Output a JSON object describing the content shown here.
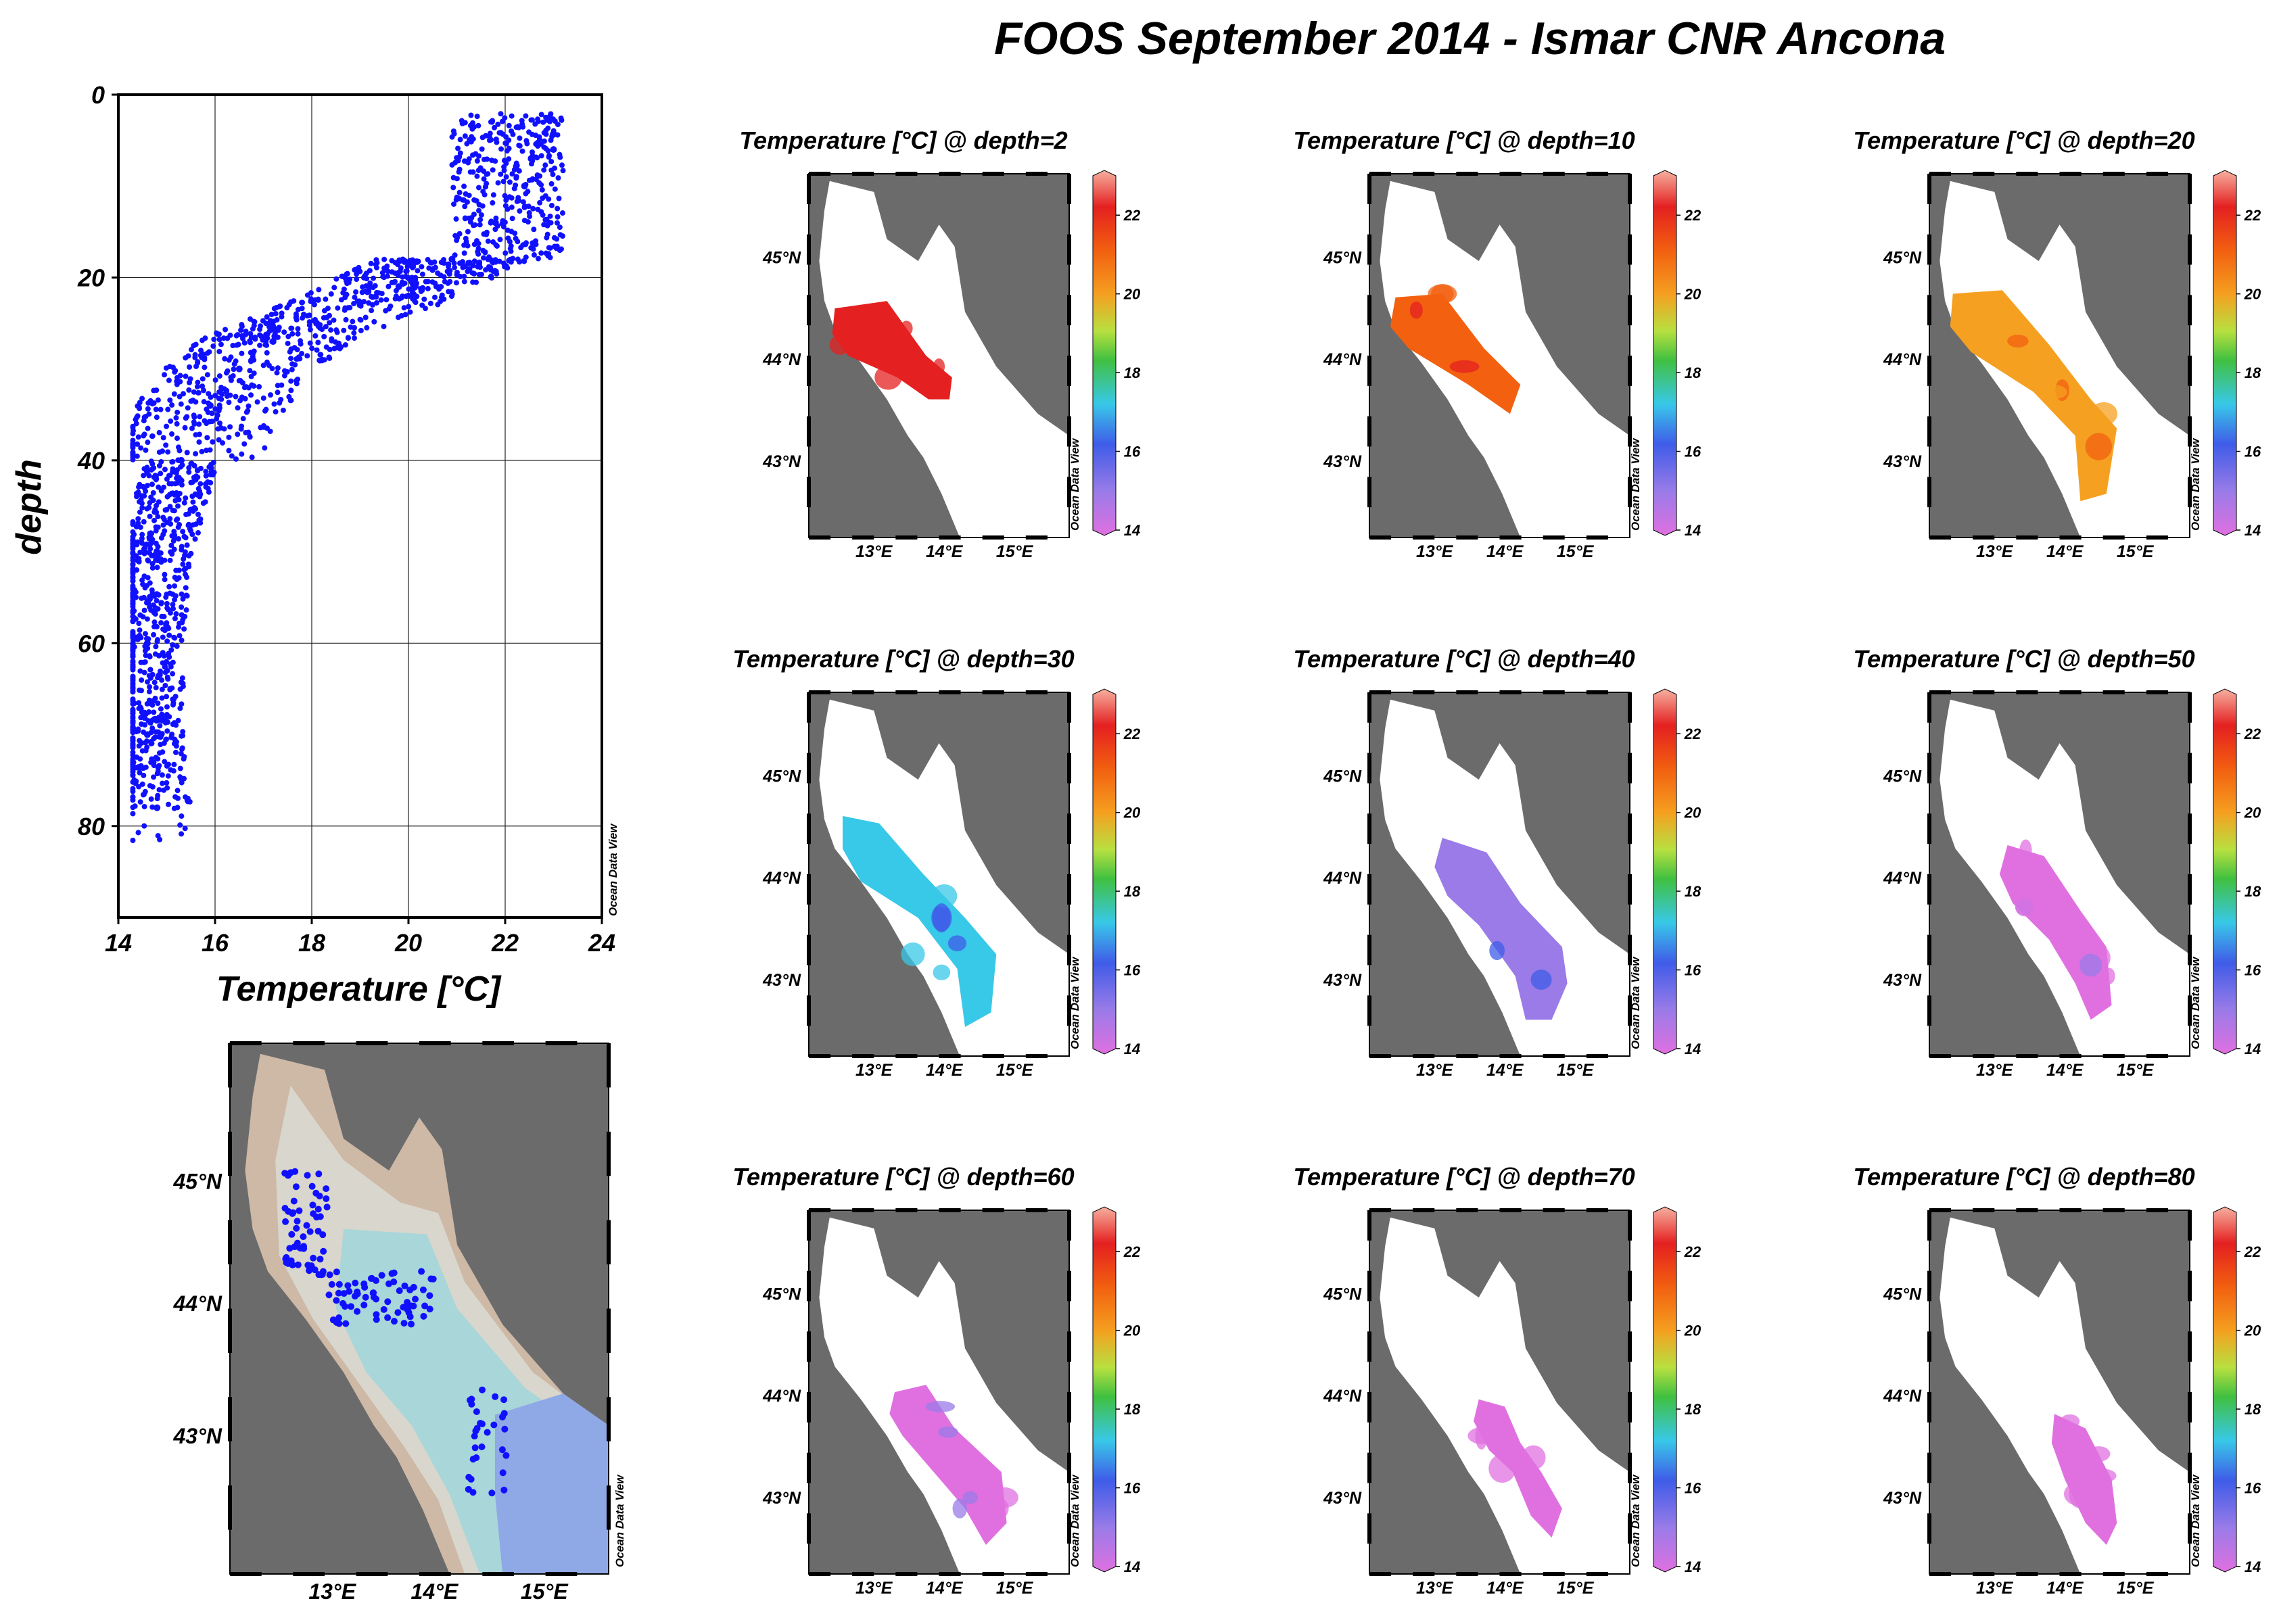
{
  "page_title": "FOOS September 2014 - Ismar CNR Ancona",
  "watermark": "Ocean Data View",
  "chart_data": [
    {
      "type": "scatter",
      "xlabel": "Temperature [°C]",
      "ylabel": "depth",
      "xlim": [
        14,
        24
      ],
      "ylim": [
        90,
        0
      ],
      "x_ticks": [
        14,
        16,
        18,
        20,
        22,
        24
      ],
      "y_ticks": [
        0,
        20,
        40,
        60,
        80
      ],
      "grid": true,
      "series_color": "#1010ff",
      "profile_points": [
        [
          23.0,
          6
        ],
        [
          22.4,
          10
        ],
        [
          21.8,
          14
        ],
        [
          20.9,
          18
        ],
        [
          19.8,
          21
        ],
        [
          19.0,
          23
        ],
        [
          18.1,
          25
        ],
        [
          17.2,
          27
        ],
        [
          16.5,
          30
        ],
        [
          15.9,
          34
        ],
        [
          15.3,
          40
        ],
        [
          14.8,
          50
        ],
        [
          14.6,
          60
        ],
        [
          14.6,
          70
        ],
        [
          14.8,
          78
        ]
      ]
    },
    {
      "type": "map",
      "lat_ticks": [
        "45°N",
        "44°N",
        "43°N"
      ],
      "lon_ticks": [
        "13°E",
        "14°E",
        "15°E"
      ],
      "colors": {
        "land": "#6b6b6b",
        "shelf": "#cdb9a6",
        "shallow": "#d9d6cd",
        "mid": "#a8d6d9",
        "deep": "#8fa8e6",
        "stations": "#1010ff"
      }
    },
    {
      "type": "heatmap",
      "panels": [
        {
          "title": "Temperature [°C] @ depth=2",
          "mean": 22.3
        },
        {
          "title": "Temperature [°C] @ depth=10",
          "mean": 22.0
        },
        {
          "title": "Temperature [°C] @ depth=20",
          "mean": 20.8
        },
        {
          "title": "Temperature [°C] @ depth=30",
          "mean": 17.2
        },
        {
          "title": "Temperature [°C] @ depth=40",
          "mean": 15.9
        },
        {
          "title": "Temperature [°C] @ depth=50",
          "mean": 15.0
        },
        {
          "title": "Temperature [°C] @ depth=60",
          "mean": 14.8
        },
        {
          "title": "Temperature [°C] @ depth=70",
          "mean": 14.6
        },
        {
          "title": "Temperature [°C] @ depth=80",
          "mean": 14.4
        }
      ],
      "lat_ticks": [
        "45°N",
        "44°N",
        "43°N"
      ],
      "lon_ticks": [
        "13°E",
        "14°E",
        "15°E"
      ],
      "colorbar_ticks": [
        "22",
        "20",
        "18",
        "16",
        "14"
      ],
      "colorbar_range": [
        14,
        23
      ],
      "colors": {
        "land": "#6b6b6b",
        "sea": "#ffffff"
      }
    }
  ]
}
